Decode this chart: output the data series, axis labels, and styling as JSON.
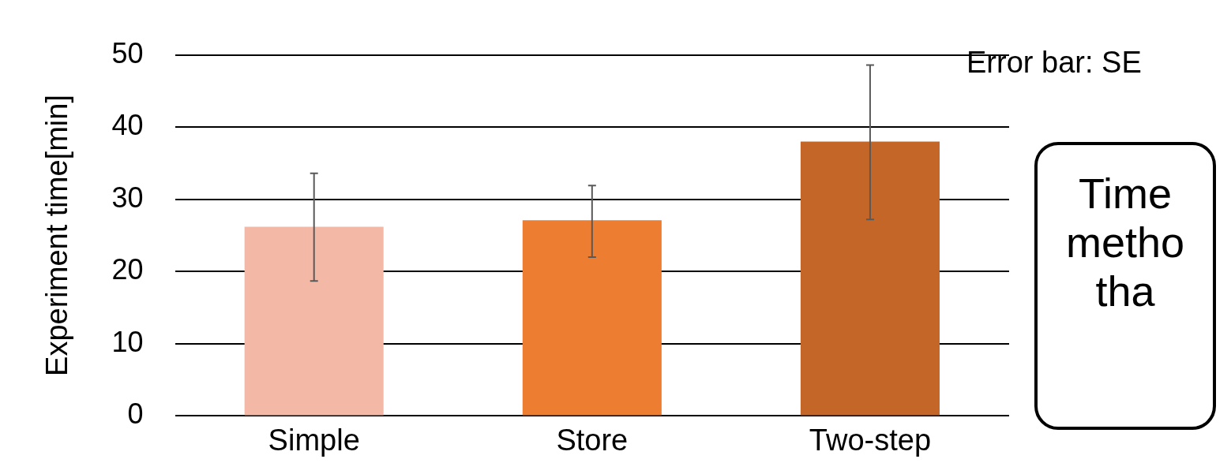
{
  "chart_data": {
    "type": "bar",
    "ylabel": "Experiment time[min]",
    "categories": [
      "Simple",
      "Store",
      "Two-step"
    ],
    "values": [
      26.2,
      27.1,
      38
    ],
    "colors": [
      "#f4b9a6",
      "#ed7d31",
      "#c46628"
    ],
    "errors": [
      [
        18.7,
        33.6
      ],
      [
        22,
        31.9
      ],
      [
        27.2,
        48.6
      ]
    ],
    "ylim": [
      0,
      50
    ],
    "yticks": [
      0,
      10,
      20,
      30,
      40,
      50
    ],
    "grid": "y",
    "annotations": [
      "Error bar: SE",
      "Time\nmetho\ntha"
    ]
  }
}
